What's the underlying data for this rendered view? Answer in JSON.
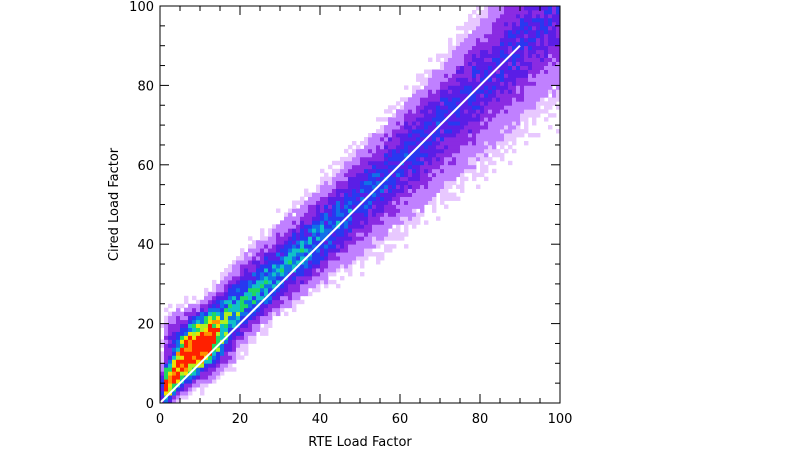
{
  "chart_data": {
    "type": "heatmap",
    "title": "",
    "xlabel": "RTE Load Factor",
    "ylabel": "Cired Load Factor",
    "xlim": [
      0,
      100
    ],
    "ylim": [
      0,
      100
    ],
    "xticks": [
      "0",
      "20",
      "40",
      "60",
      "80",
      "100"
    ],
    "yticks": [
      "0",
      "20",
      "40",
      "60",
      "80",
      "100"
    ],
    "grid": false,
    "colormap": [
      "#e8c8ff",
      "#c080ff",
      "#8a2be2",
      "#5a1ee6",
      "#2838f0",
      "#1070e8",
      "#10c0c8",
      "#20d860",
      "#b0f020",
      "#f0e000",
      "#ff9000",
      "#ff2000"
    ],
    "density_model": {
      "description": "2D histogram of hourly load factors; density concentrated near low values and along a band slightly above the identity line",
      "ridge": [
        {
          "x": 2,
          "y": 5
        },
        {
          "x": 5,
          "y": 10
        },
        {
          "x": 10,
          "y": 16
        },
        {
          "x": 15,
          "y": 22
        },
        {
          "x": 20,
          "y": 27
        },
        {
          "x": 25,
          "y": 31
        },
        {
          "x": 30,
          "y": 35
        },
        {
          "x": 40,
          "y": 42
        },
        {
          "x": 50,
          "y": 50
        },
        {
          "x": 60,
          "y": 58
        },
        {
          "x": 70,
          "y": 67
        },
        {
          "x": 80,
          "y": 77
        },
        {
          "x": 90,
          "y": 88
        },
        {
          "x": 98,
          "y": 96
        }
      ],
      "peak": {
        "x": 9,
        "y": 15
      }
    },
    "series": [
      {
        "type": "line",
        "x": [
          0,
          90
        ],
        "y": [
          0,
          90
        ],
        "color": "#ffffff"
      }
    ]
  }
}
